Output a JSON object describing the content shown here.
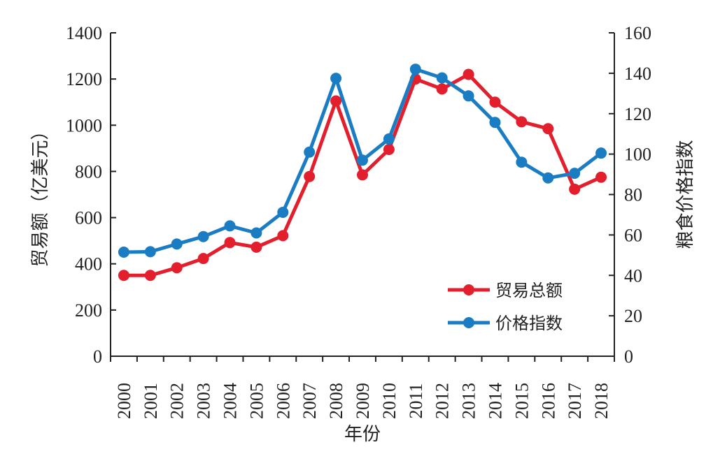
{
  "chart_data": {
    "type": "line",
    "x": [
      "2000",
      "2001",
      "2002",
      "2003",
      "2004",
      "2005",
      "2006",
      "2007",
      "2008",
      "2009",
      "2010",
      "2011",
      "2012",
      "2013",
      "2014",
      "2015",
      "2016",
      "2017",
      "2018"
    ],
    "xlabel": "年份",
    "y_left": {
      "label": "贸易额（亿美元）",
      "ylim": [
        0,
        1400
      ],
      "ticks": [
        0,
        200,
        400,
        600,
        800,
        1000,
        1200,
        1400
      ]
    },
    "y_right": {
      "label": "粮食价格指数",
      "ylim": [
        0,
        160
      ],
      "ticks": [
        0,
        20,
        40,
        60,
        80,
        100,
        120,
        140,
        160
      ]
    },
    "series": [
      {
        "name": "贸易总额",
        "axis": "left",
        "color": "#e31e2d",
        "values": [
          350,
          350,
          383,
          423,
          492,
          472,
          522,
          778,
          1105,
          785,
          895,
          1200,
          1157,
          1220,
          1100,
          1015,
          985,
          723,
          775
        ]
      },
      {
        "name": "价格指数",
        "axis": "right",
        "color": "#1a7dc4",
        "values": [
          51.5,
          51.7,
          55.5,
          59.2,
          64.5,
          61,
          71.2,
          101,
          137.5,
          97,
          107.5,
          142,
          137.7,
          128.8,
          115.7,
          96,
          88.2,
          90.5,
          100.5
        ]
      }
    ],
    "legend": {
      "position": "bottom-right"
    },
    "grid": false
  }
}
